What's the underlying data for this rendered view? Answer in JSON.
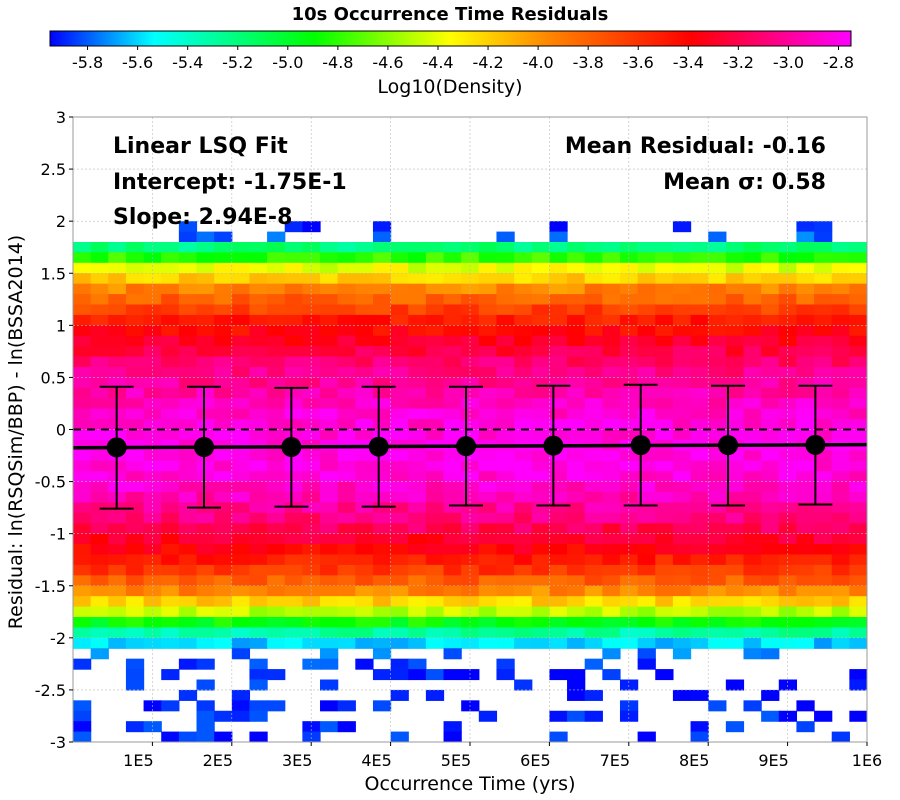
{
  "chart_data": {
    "type": "heatmap",
    "title": "10s Occurrence Time Residuals",
    "colorbar": {
      "label": "Log10(Density)",
      "range": [
        -5.95,
        -2.75
      ],
      "ticks": [
        "-5.8",
        "-5.6",
        "-5.4",
        "-5.2",
        "-5.0",
        "-4.8",
        "-4.6",
        "-4.4",
        "-4.2",
        "-4.0",
        "-3.8",
        "-3.6",
        "-3.4",
        "-3.2",
        "-3.0",
        "-2.8"
      ],
      "tick_values": [
        -5.8,
        -5.6,
        -5.4,
        -5.2,
        -5.0,
        -4.8,
        -4.6,
        -4.4,
        -4.2,
        -4.0,
        -3.8,
        -3.6,
        -3.4,
        -3.2,
        -3.0,
        -2.8
      ],
      "colors": [
        "#0000ff",
        "#00ffff",
        "#00ff00",
        "#ffff00",
        "#ff8800",
        "#ff0000",
        "#ff00ff"
      ]
    },
    "xlabel": "Occurrence Time (yrs)",
    "ylabel": "Residual: ln(RSQSim/BBP) - ln(BSSA2014)",
    "xlim": [
      0,
      1000000
    ],
    "ylim": [
      -3,
      3
    ],
    "x_ticks": [
      "1E5",
      "2E5",
      "3E5",
      "4E5",
      "5E5",
      "6E5",
      "7E5",
      "8E5",
      "9E5",
      "1E6"
    ],
    "x_tick_values": [
      100000,
      200000,
      300000,
      400000,
      500000,
      600000,
      700000,
      800000,
      900000,
      1000000
    ],
    "y_ticks": [
      "3",
      "2.5",
      "2",
      "1.5",
      "1",
      "0.5",
      "0",
      "-0.5",
      "-1",
      "-1.5",
      "-2",
      "-2.5",
      "-3"
    ],
    "y_tick_values": [
      3,
      2.5,
      2,
      1.5,
      1,
      0.5,
      0,
      -0.5,
      -1,
      -1.5,
      -2,
      -2.5,
      -3
    ],
    "grid": true,
    "zero_line": "dashed",
    "heatmap": {
      "n_x_bins": 45,
      "bin_height": 0.1,
      "density_bins": [
        {
          "y": 1.95,
          "log10_density": -5.9
        },
        {
          "y": 1.85,
          "log10_density": -5.8
        },
        {
          "y": 1.75,
          "log10_density": -5.2
        },
        {
          "y": 1.65,
          "log10_density": -4.8
        },
        {
          "y": 1.55,
          "log10_density": -4.4
        },
        {
          "y": 1.45,
          "log10_density": -4.2
        },
        {
          "y": 1.35,
          "log10_density": -3.95
        },
        {
          "y": 1.25,
          "log10_density": -3.8
        },
        {
          "y": 1.15,
          "log10_density": -3.65
        },
        {
          "y": 1.05,
          "log10_density": -3.5
        },
        {
          "y": 0.95,
          "log10_density": -3.4
        },
        {
          "y": 0.85,
          "log10_density": -3.3
        },
        {
          "y": 0.75,
          "log10_density": -3.22
        },
        {
          "y": 0.65,
          "log10_density": -3.12
        },
        {
          "y": 0.55,
          "log10_density": -3.05
        },
        {
          "y": 0.45,
          "log10_density": -3.0
        },
        {
          "y": 0.35,
          "log10_density": -2.95
        },
        {
          "y": 0.25,
          "log10_density": -2.9
        },
        {
          "y": 0.15,
          "log10_density": -2.86
        },
        {
          "y": 0.05,
          "log10_density": -2.84
        },
        {
          "y": -0.05,
          "log10_density": -2.82
        },
        {
          "y": -0.15,
          "log10_density": -2.8
        },
        {
          "y": -0.25,
          "log10_density": -2.8
        },
        {
          "y": -0.35,
          "log10_density": -2.82
        },
        {
          "y": -0.45,
          "log10_density": -2.85
        },
        {
          "y": -0.55,
          "log10_density": -2.88
        },
        {
          "y": -0.65,
          "log10_density": -2.93
        },
        {
          "y": -0.75,
          "log10_density": -3.0
        },
        {
          "y": -0.85,
          "log10_density": -3.08
        },
        {
          "y": -0.95,
          "log10_density": -3.18
        },
        {
          "y": -1.05,
          "log10_density": -3.28
        },
        {
          "y": -1.15,
          "log10_density": -3.38
        },
        {
          "y": -1.25,
          "log10_density": -3.5
        },
        {
          "y": -1.35,
          "log10_density": -3.62
        },
        {
          "y": -1.45,
          "log10_density": -3.78
        },
        {
          "y": -1.55,
          "log10_density": -3.95
        },
        {
          "y": -1.65,
          "log10_density": -4.2
        },
        {
          "y": -1.75,
          "log10_density": -4.5
        },
        {
          "y": -1.85,
          "log10_density": -4.9
        },
        {
          "y": -1.95,
          "log10_density": -5.3
        },
        {
          "y": -2.05,
          "log10_density": -5.6
        },
        {
          "y": -2.15,
          "log10_density": -5.75
        },
        {
          "y": -2.25,
          "log10_density": -5.85
        },
        {
          "y": -2.35,
          "log10_density": -5.9
        },
        {
          "y": -2.45,
          "log10_density": -5.9
        },
        {
          "y": -2.55,
          "log10_density": -5.9
        },
        {
          "y": -2.65,
          "log10_density": -5.9
        },
        {
          "y": -2.75,
          "log10_density": -5.9
        },
        {
          "y": -2.85,
          "log10_density": -5.9
        },
        {
          "y": -2.95,
          "log10_density": -5.9
        }
      ]
    },
    "fit_line": {
      "x": [
        0,
        1000000
      ],
      "y": [
        -0.175,
        -0.1456
      ]
    },
    "binned_means": {
      "x": [
        55000,
        165000,
        275000,
        385000,
        495000,
        605000,
        715000,
        825000,
        935000
      ],
      "mean": [
        -0.172,
        -0.168,
        -0.168,
        -0.165,
        -0.16,
        -0.155,
        -0.15,
        -0.15,
        -0.148
      ],
      "upper": [
        0.41,
        0.41,
        0.4,
        0.41,
        0.41,
        0.42,
        0.43,
        0.42,
        0.42
      ],
      "lower": [
        -0.76,
        -0.75,
        -0.74,
        -0.74,
        -0.73,
        -0.73,
        -0.73,
        -0.73,
        -0.72
      ]
    },
    "annotations": {
      "fit_title": "Linear LSQ Fit",
      "intercept": "Intercept: -1.75E-1",
      "slope": "Slope: 2.94E-8",
      "mean_residual": "Mean Residual: -0.16",
      "mean_sigma": "Mean σ: 0.58"
    }
  }
}
